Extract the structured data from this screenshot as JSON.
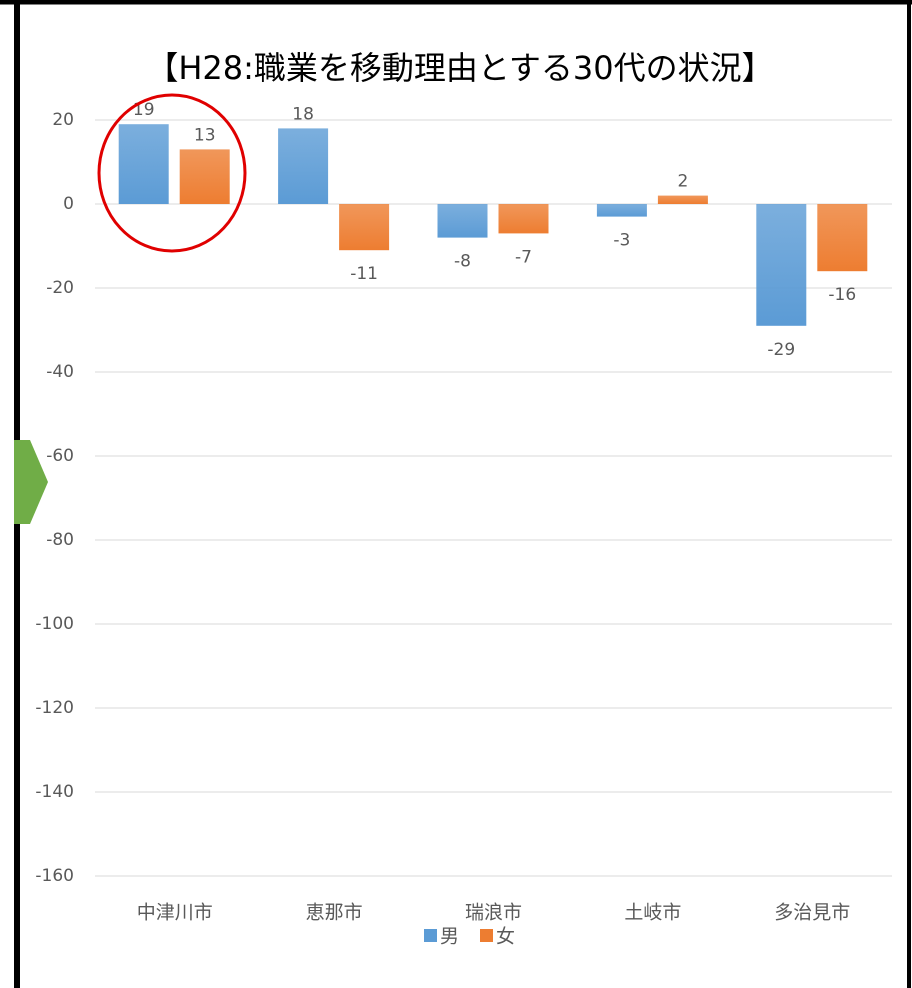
{
  "chart_data": {
    "type": "bar",
    "title": "【H28:職業を移動理由とする30代の状況】",
    "categories": [
      "中津川市",
      "恵那市",
      "瑞浪市",
      "土岐市",
      "多治見市"
    ],
    "series": [
      {
        "name": "男",
        "color": "#5b9bd5",
        "values": [
          19,
          18,
          -8,
          -3,
          -29
        ]
      },
      {
        "name": "女",
        "color": "#ed7d31",
        "values": [
          13,
          -11,
          -7,
          2,
          -16
        ]
      }
    ],
    "ylim": [
      -160,
      20
    ],
    "yticks": [
      -160,
      -140,
      -120,
      -100,
      -80,
      -60,
      -40,
      -20,
      0,
      20
    ],
    "grid": true,
    "legend": "bottom"
  }
}
